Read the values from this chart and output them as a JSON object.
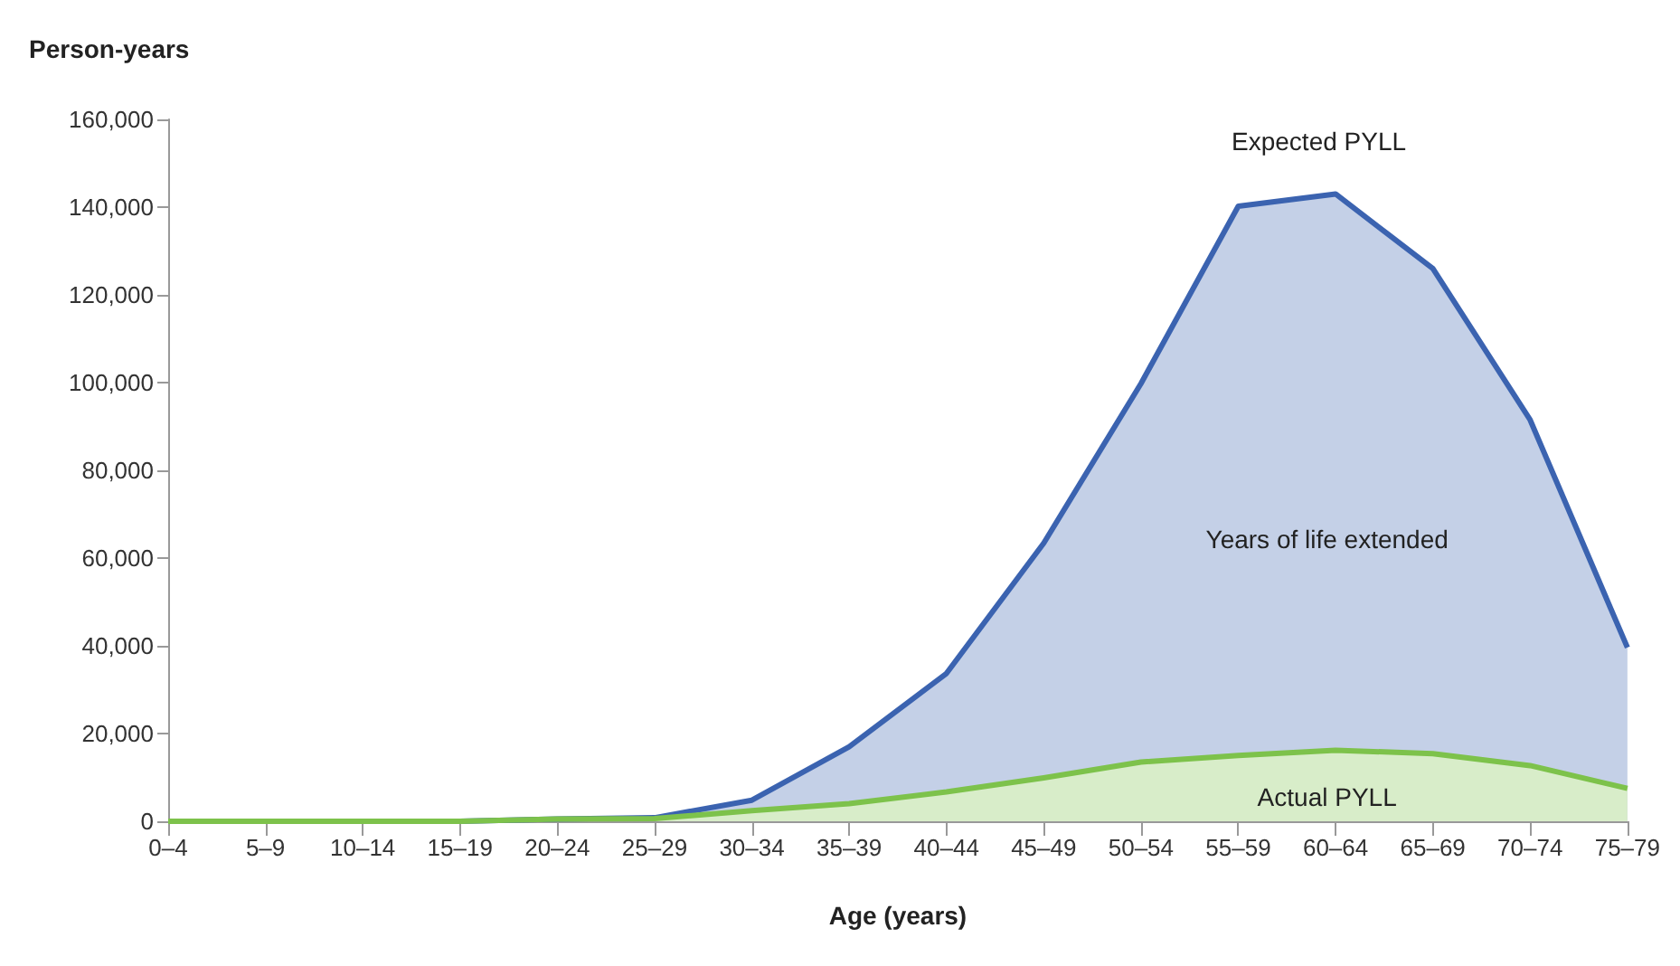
{
  "chart_data": {
    "type": "area",
    "ylabel": "Person-years",
    "xlabel": "Age (years)",
    "categories": [
      "0–4",
      "5–9",
      "10–14",
      "15–19",
      "20–24",
      "25–29",
      "30–34",
      "35–39",
      "40–44",
      "45–49",
      "50–54",
      "55–59",
      "60–64",
      "65–69",
      "70–74",
      "75–79"
    ],
    "series": [
      {
        "color": "#3b63b0",
        "values": [
          0,
          0,
          0,
          0,
          500,
          800,
          4800,
          17000,
          33700,
          63400,
          99800,
          140200,
          143000,
          126000,
          91500,
          39600
        ]
      },
      {
        "color": "#7dc24b",
        "values": [
          0,
          0,
          0,
          0,
          500,
          600,
          2400,
          4000,
          6700,
          9900,
          13500,
          15000,
          16200,
          15400,
          12700,
          7500
        ]
      }
    ],
    "ylim": [
      0,
      160000
    ],
    "yticks": [
      0,
      {
        "value": 20000,
        "label": "20,000"
      },
      {
        "value": 40000,
        "label": "40,000"
      },
      {
        "value": 60000,
        "label": "60,000"
      },
      {
        "value": 80000,
        "label": "80,000"
      },
      {
        "value": 100000,
        "label": "100,000"
      },
      {
        "value": 120000,
        "label": "120,000"
      },
      {
        "value": 140000,
        "label": "140,000"
      },
      {
        "value": 160000,
        "label": "160,000"
      }
    ],
    "grid": false,
    "annotations": [
      "Expected PYLL",
      "Years of life extended",
      "Actual PYLL"
    ]
  }
}
